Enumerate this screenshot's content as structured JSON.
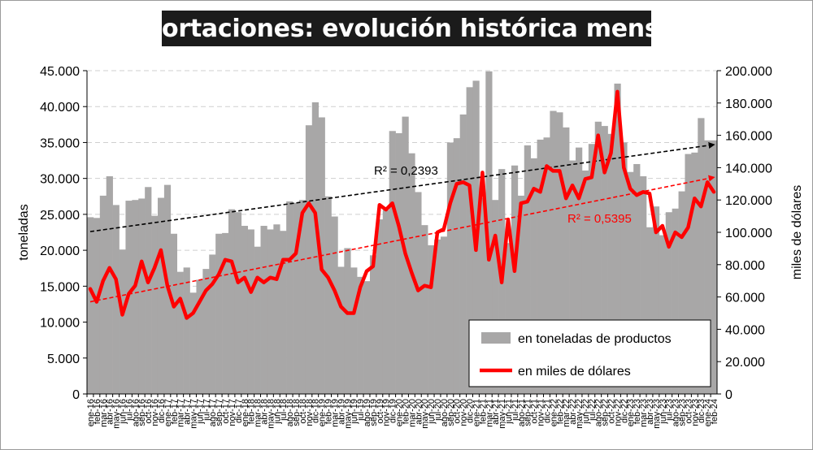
{
  "colors": {
    "bars": "#a8a7a7",
    "line": "#ff0000",
    "trend_bars": "#000000",
    "trend_line": "#ff0000",
    "grid": "#cfcfcf"
  },
  "chart_data": {
    "type": "bar+line",
    "title": "Exportaciones: evolución histórica mensual",
    "ylabel_left": "toneladas",
    "ylabel_right": "miles de dólares",
    "ylim_left": [
      0,
      45000
    ],
    "ylim_right": [
      0,
      200000
    ],
    "yticks_left": [
      "0",
      "5.000",
      "10.000",
      "15.000",
      "20.000",
      "25.000",
      "30.000",
      "35.000",
      "40.000",
      "45.000"
    ],
    "yticks_right": [
      "0",
      "20.000",
      "40.000",
      "60.000",
      "80.000",
      "100.000",
      "120.000",
      "140.000",
      "160.000",
      "180.000",
      "200.000"
    ],
    "grid": true,
    "legend_position": "bottom-right",
    "categories": [
      "ene-16",
      "feb-16",
      "mar-16",
      "abr-16",
      "may-16",
      "jun-16",
      "jul-16",
      "ago-16",
      "sep-16",
      "oct-16",
      "nov-16",
      "dic-16",
      "ene-17",
      "feb-17",
      "mar-17",
      "abr-17",
      "may-17",
      "jun-17",
      "jul-17",
      "ago-17",
      "sep-17",
      "oct-17",
      "nov-17",
      "dic-17",
      "ene-18",
      "feb-18",
      "mar-18",
      "abr-18",
      "may-18",
      "jun-18",
      "jul-18",
      "ago-18",
      "sep-18",
      "oct-18",
      "nov-18",
      "dic-18",
      "ene-19",
      "feb-19",
      "mar-19",
      "abr-19",
      "may-19",
      "jun-19",
      "jul-19",
      "ago-19",
      "sep-19",
      "oct-19",
      "nov-19",
      "dic-19",
      "ene-20",
      "feb-20",
      "mar-20",
      "abr-20",
      "may-20",
      "jun-20",
      "jul-20",
      "ago-20",
      "sep-20",
      "oct-20",
      "nov-20",
      "dic-20",
      "ene-21",
      "feb-21",
      "mar-21",
      "abr-21",
      "may-21",
      "jun-21",
      "jul-21",
      "ago-21",
      "sep-21",
      "oct-21",
      "nov-21",
      "dic-21",
      "ene-22",
      "feb-22",
      "mar-22",
      "abr-22",
      "may-22",
      "jun-22",
      "jul-22",
      "ago-22",
      "sep-22",
      "oct-22",
      "nov-22",
      "dic-22",
      "ene-23",
      "feb-23",
      "mar-23",
      "abr-23",
      "may-23",
      "jun-23",
      "jul-23",
      "ago-23",
      "sep-23",
      "oct-23",
      "nov-23",
      "dic-23",
      "ene-24",
      "feb-24"
    ],
    "series": [
      {
        "name": "en toneladas de productos",
        "axis": "left",
        "kind": "bar",
        "values": [
          24600,
          24500,
          27600,
          30300,
          26300,
          20100,
          26900,
          27000,
          27200,
          28800,
          24800,
          27300,
          29100,
          22300,
          17000,
          17600,
          14100,
          15900,
          17400,
          19400,
          22300,
          22400,
          25700,
          25300,
          23400,
          22900,
          20500,
          23400,
          22900,
          23600,
          22700,
          26800,
          26600,
          27000,
          37400,
          40600,
          38500,
          27500,
          24700,
          17700,
          20300,
          17600,
          16300,
          15700,
          19300,
          24300,
          25600,
          36600,
          36300,
          38600,
          33500,
          28100,
          23500,
          20700,
          21500,
          21900,
          35000,
          35600,
          38900,
          42700,
          43600,
          27300,
          44900,
          27000,
          31300,
          21000,
          31800,
          27600,
          34600,
          32800,
          35400,
          35700,
          39400,
          39200,
          37100,
          32500,
          34300,
          31100,
          34800,
          37900,
          37300,
          36200,
          43200,
          35000,
          30900,
          32000,
          30300,
          23200,
          26100,
          22100,
          25300,
          25800,
          28200,
          33400,
          33600,
          38400,
          35300,
          35300
        ]
      },
      {
        "name": "en miles de dólares",
        "axis": "right",
        "kind": "line",
        "values": [
          65000,
          57000,
          70000,
          78000,
          71000,
          49000,
          62000,
          67000,
          82000,
          69000,
          78000,
          89000,
          67000,
          54000,
          59000,
          47000,
          50000,
          57000,
          64000,
          68000,
          74000,
          83000,
          82000,
          69000,
          72000,
          63000,
          72000,
          69000,
          72000,
          71000,
          83000,
          83000,
          87000,
          112000,
          118000,
          112000,
          77000,
          72000,
          64000,
          54000,
          50000,
          50000,
          66000,
          76000,
          79000,
          117000,
          114000,
          118000,
          104000,
          87000,
          75000,
          64000,
          67000,
          66000,
          100000,
          102000,
          118000,
          130000,
          131000,
          129000,
          89000,
          137000,
          83000,
          98000,
          69000,
          108000,
          76000,
          118000,
          119000,
          127000,
          125000,
          141000,
          138000,
          138000,
          121000,
          129000,
          121000,
          133000,
          134000,
          160000,
          137000,
          149000,
          187000,
          140000,
          127000,
          123000,
          125000,
          124000,
          100000,
          104000,
          91000,
          100000,
          97000,
          103000,
          121000,
          116000,
          131000,
          125000
        ]
      }
    ],
    "trendlines": [
      {
        "series": "en toneladas de productos",
        "label": "R² = 0,2393",
        "start": 22600,
        "end": 34700
      },
      {
        "series": "en miles de dólares",
        "label": "R² = 0,5395",
        "start": 57000,
        "end": 134000
      }
    ]
  }
}
